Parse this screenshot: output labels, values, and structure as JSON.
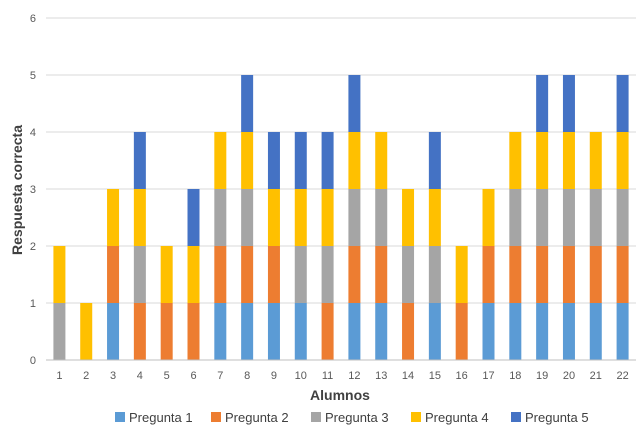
{
  "chart_data": {
    "type": "bar",
    "stacked": true,
    "title": "",
    "xlabel": "Alumnos",
    "ylabel": "Respuesta correcta",
    "ylim": [
      0,
      6
    ],
    "yticks": [
      0,
      1,
      2,
      3,
      4,
      5,
      6
    ],
    "grid": true,
    "legend_position": "bottom",
    "categories": [
      "1",
      "2",
      "3",
      "4",
      "5",
      "6",
      "7",
      "8",
      "9",
      "10",
      "11",
      "12",
      "13",
      "14",
      "15",
      "16",
      "17",
      "18",
      "19",
      "20",
      "21",
      "22"
    ],
    "series": [
      {
        "name": "Pregunta 1",
        "color": "#5B9BD5",
        "values": [
          0,
          0,
          1,
          0,
          0,
          0,
          1,
          1,
          1,
          1,
          0,
          1,
          1,
          0,
          1,
          0,
          1,
          1,
          1,
          1,
          1,
          1
        ]
      },
      {
        "name": "Pregunta 2",
        "color": "#ED7D31",
        "values": [
          0,
          0,
          1,
          1,
          1,
          1,
          1,
          1,
          1,
          0,
          1,
          1,
          1,
          1,
          0,
          1,
          1,
          1,
          1,
          1,
          1,
          1
        ]
      },
      {
        "name": "Pregunta 3",
        "color": "#A5A5A5",
        "values": [
          1,
          0,
          0,
          1,
          0,
          0,
          1,
          1,
          0,
          1,
          1,
          1,
          1,
          1,
          1,
          0,
          0,
          1,
          1,
          1,
          1,
          1
        ]
      },
      {
        "name": "Pregunta 4",
        "color": "#FFC000",
        "values": [
          1,
          1,
          1,
          1,
          1,
          1,
          1,
          1,
          1,
          1,
          1,
          1,
          1,
          1,
          1,
          1,
          1,
          1,
          1,
          1,
          1,
          1
        ]
      },
      {
        "name": "Pregunta 5",
        "color": "#4472C4",
        "values": [
          0,
          0,
          0,
          1,
          0,
          1,
          0,
          1,
          1,
          1,
          1,
          1,
          0,
          0,
          1,
          0,
          0,
          0,
          1,
          1,
          0,
          1
        ]
      }
    ]
  }
}
